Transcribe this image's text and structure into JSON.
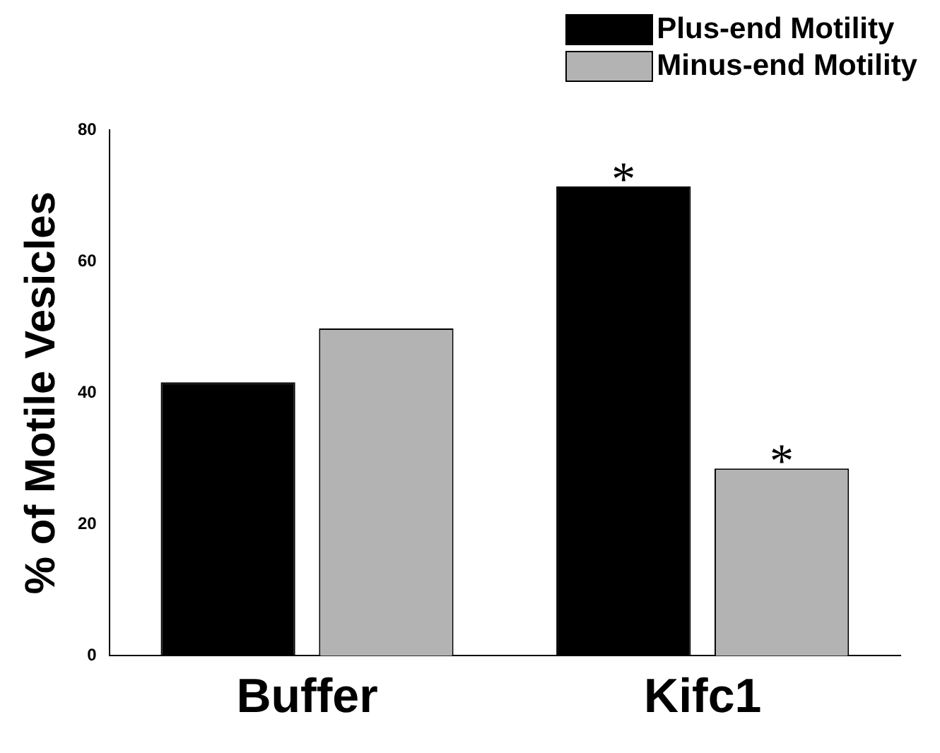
{
  "chart_data": {
    "type": "bar",
    "ylabel": "% of Motile Vesicles",
    "categories": [
      "Buffer",
      "Kifc1"
    ],
    "series": [
      {
        "name": "Plus-end Motility",
        "color": "#000000",
        "values": [
          41.6,
          71.4
        ]
      },
      {
        "name": "Minus-end Motility",
        "color": "#b3b3b3",
        "values": [
          49.8,
          28.5
        ]
      }
    ],
    "ylim": [
      0,
      80
    ],
    "yticks": [
      0,
      20,
      40,
      60,
      80
    ],
    "grid": false,
    "legend": "top right",
    "annotations": [
      "*",
      "*"
    ]
  }
}
